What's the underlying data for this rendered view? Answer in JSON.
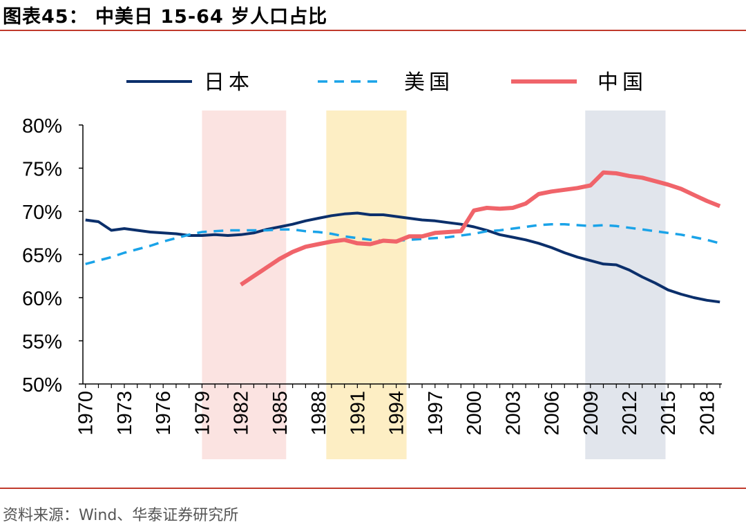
{
  "header": {
    "title": "图表45：   中美日 15-64 岁人口占比"
  },
  "footer": {
    "source": "资料来源：Wind、华泰证券研究所"
  },
  "colors": {
    "japan": "#0b2f6b",
    "usa": "#1aa3e8",
    "china": "#f0646a",
    "rule": "#c0392b"
  },
  "chart_data": {
    "type": "line",
    "title": "中美日 15-64 岁人口占比",
    "xlabel": "",
    "ylabel": "",
    "ylim": [
      0.5,
      0.8
    ],
    "yticks": [
      0.5,
      0.55,
      0.6,
      0.65,
      0.7,
      0.75,
      0.8
    ],
    "ytick_labels": [
      "50%",
      "55%",
      "60%",
      "65%",
      "70%",
      "75%",
      "80%"
    ],
    "xlim": [
      1970,
      2019
    ],
    "xticks": [
      1970,
      1973,
      1976,
      1979,
      1982,
      1985,
      1988,
      1991,
      1994,
      1997,
      2000,
      2003,
      2006,
      2009,
      2012,
      2015,
      2018
    ],
    "legend_position": "top",
    "shaded_periods": [
      {
        "start": 1979,
        "end": 1985.5,
        "color": "#fbe3e1"
      },
      {
        "start": 1988.6,
        "end": 1994.8,
        "color": "#fdeec4"
      },
      {
        "start": 2008.6,
        "end": 2014.8,
        "color": "#e1e5ec"
      }
    ],
    "series": [
      {
        "name": "日本",
        "style": "solid",
        "x": [
          1970,
          1971,
          1972,
          1973,
          1974,
          1975,
          1976,
          1977,
          1978,
          1979,
          1980,
          1981,
          1982,
          1983,
          1984,
          1985,
          1986,
          1987,
          1988,
          1989,
          1990,
          1991,
          1992,
          1993,
          1994,
          1995,
          1996,
          1997,
          1998,
          1999,
          2000,
          2001,
          2002,
          2003,
          2004,
          2005,
          2006,
          2007,
          2008,
          2009,
          2010,
          2011,
          2012,
          2013,
          2014,
          2015,
          2016,
          2017,
          2018,
          2019
        ],
        "values": [
          0.69,
          0.688,
          0.678,
          0.68,
          0.678,
          0.676,
          0.675,
          0.674,
          0.672,
          0.672,
          0.673,
          0.672,
          0.673,
          0.675,
          0.679,
          0.682,
          0.685,
          0.689,
          0.692,
          0.695,
          0.697,
          0.698,
          0.696,
          0.696,
          0.694,
          0.692,
          0.69,
          0.689,
          0.687,
          0.685,
          0.682,
          0.678,
          0.673,
          0.67,
          0.667,
          0.663,
          0.658,
          0.652,
          0.647,
          0.643,
          0.639,
          0.638,
          0.632,
          0.624,
          0.617,
          0.609,
          0.604,
          0.6,
          0.597,
          0.595
        ]
      },
      {
        "name": "美国",
        "style": "dashed",
        "x": [
          1970,
          1971,
          1972,
          1973,
          1974,
          1975,
          1976,
          1977,
          1978,
          1979,
          1980,
          1981,
          1982,
          1983,
          1984,
          1985,
          1986,
          1987,
          1988,
          1989,
          1990,
          1991,
          1992,
          1993,
          1994,
          1995,
          1996,
          1997,
          1998,
          1999,
          2000,
          2001,
          2002,
          2003,
          2004,
          2005,
          2006,
          2007,
          2008,
          2009,
          2010,
          2011,
          2012,
          2013,
          2014,
          2015,
          2016,
          2017,
          2018,
          2019
        ],
        "values": [
          0.639,
          0.643,
          0.647,
          0.652,
          0.656,
          0.66,
          0.665,
          0.669,
          0.673,
          0.676,
          0.677,
          0.678,
          0.678,
          0.678,
          0.678,
          0.679,
          0.679,
          0.677,
          0.676,
          0.674,
          0.671,
          0.669,
          0.667,
          0.666,
          0.666,
          0.667,
          0.668,
          0.669,
          0.67,
          0.672,
          0.674,
          0.677,
          0.678,
          0.68,
          0.682,
          0.684,
          0.685,
          0.685,
          0.684,
          0.683,
          0.684,
          0.683,
          0.681,
          0.679,
          0.677,
          0.675,
          0.673,
          0.67,
          0.667,
          0.663
        ]
      },
      {
        "name": "中国",
        "style": "solid-thick",
        "x": [
          1982,
          1983,
          1984,
          1985,
          1986,
          1987,
          1988,
          1989,
          1990,
          1991,
          1992,
          1993,
          1994,
          1995,
          1996,
          1997,
          1998,
          1999,
          2000,
          2001,
          2002,
          2003,
          2004,
          2005,
          2006,
          2007,
          2008,
          2009,
          2010,
          2011,
          2012,
          2013,
          2014,
          2015,
          2016,
          2017,
          2018,
          2019
        ],
        "values": [
          0.615,
          0.625,
          0.635,
          0.645,
          0.653,
          0.659,
          0.662,
          0.665,
          0.667,
          0.663,
          0.662,
          0.666,
          0.665,
          0.671,
          0.671,
          0.675,
          0.676,
          0.677,
          0.701,
          0.704,
          0.703,
          0.704,
          0.709,
          0.72,
          0.723,
          0.725,
          0.727,
          0.73,
          0.745,
          0.744,
          0.741,
          0.739,
          0.735,
          0.731,
          0.726,
          0.719,
          0.712,
          0.706
        ]
      }
    ]
  }
}
